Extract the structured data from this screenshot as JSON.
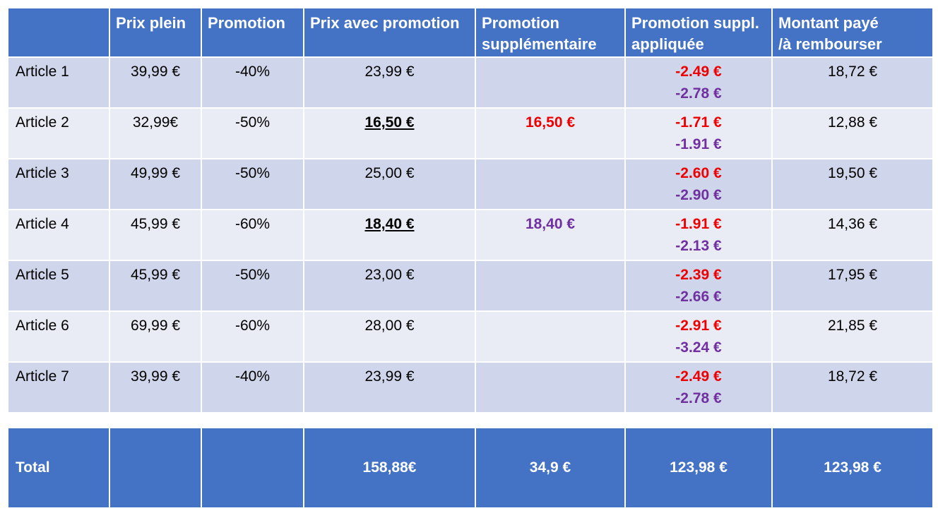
{
  "headers": {
    "col0": "",
    "col1": "Prix  plein",
    "col2": "Promotion",
    "col3": "Prix avec promotion",
    "col4_line1": "Promotion",
    "col4_line2": "supplémentaire",
    "col5_line1": "Promotion suppl.",
    "col5_line2": "appliquée",
    "col6_line1": "Montant payé",
    "col6_line2": "/à rembourser"
  },
  "rows": [
    {
      "name": "Article 1",
      "prix_plein": "39,99 €",
      "promotion": "-40%",
      "prix_promo": "23,99 €",
      "promo_supp": "",
      "applied_red": "-2.49 €",
      "applied_purple": "-2.78 €",
      "montant": "18,72 €"
    },
    {
      "name": "Article 2",
      "prix_plein": "32,99€",
      "promotion": "-50%",
      "prix_promo": "16,50 €",
      "promo_supp": "16,50 €",
      "applied_red": "-1.71 €",
      "applied_purple": "-1.91 €",
      "montant": "12,88 €"
    },
    {
      "name": "Article 3",
      "prix_plein": "49,99 €",
      "promotion": "-50%",
      "prix_promo": "25,00 €",
      "promo_supp": "",
      "applied_red": "-2.60 €",
      "applied_purple": "-2.90 €",
      "montant": "19,50 €"
    },
    {
      "name": "Article 4",
      "prix_plein": "45,99 €",
      "promotion": "-60%",
      "prix_promo": "18,40 €",
      "promo_supp": "18,40 €",
      "applied_red": "-1.91 €",
      "applied_purple": "-2.13 €",
      "montant": "14,36 €"
    },
    {
      "name": "Article 5",
      "prix_plein": "45,99 €",
      "promotion": "-50%",
      "prix_promo": "23,00 €",
      "promo_supp": "",
      "applied_red": "-2.39 €",
      "applied_purple": "-2.66 €",
      "montant": "17,95 €"
    },
    {
      "name": "Article 6",
      "prix_plein": "69,99 €",
      "promotion": "-60%",
      "prix_promo": "28,00 €",
      "promo_supp": "",
      "applied_red": "-2.91 €",
      "applied_purple": "-3.24 €",
      "montant": "21,85 €"
    },
    {
      "name": "Article 7",
      "prix_plein": "39,99 €",
      "promotion": "-40%",
      "prix_promo": "23,99 €",
      "promo_supp": "",
      "applied_red": "-2.49 €",
      "applied_purple": "-2.78 €",
      "montant": "18,72 €"
    }
  ],
  "total": {
    "label": "Total",
    "prix_plein": "",
    "promotion": "",
    "prix_promo": "158,88€",
    "promo_supp": "34,9 €",
    "applied": "123,98 €",
    "montant": "123,98 €"
  },
  "colors": {
    "header_blue": "#4472c4",
    "row_dark": "#cfd5ea",
    "row_light": "#e9ebf5",
    "red": "#ee0000",
    "purple": "#7030a0"
  }
}
